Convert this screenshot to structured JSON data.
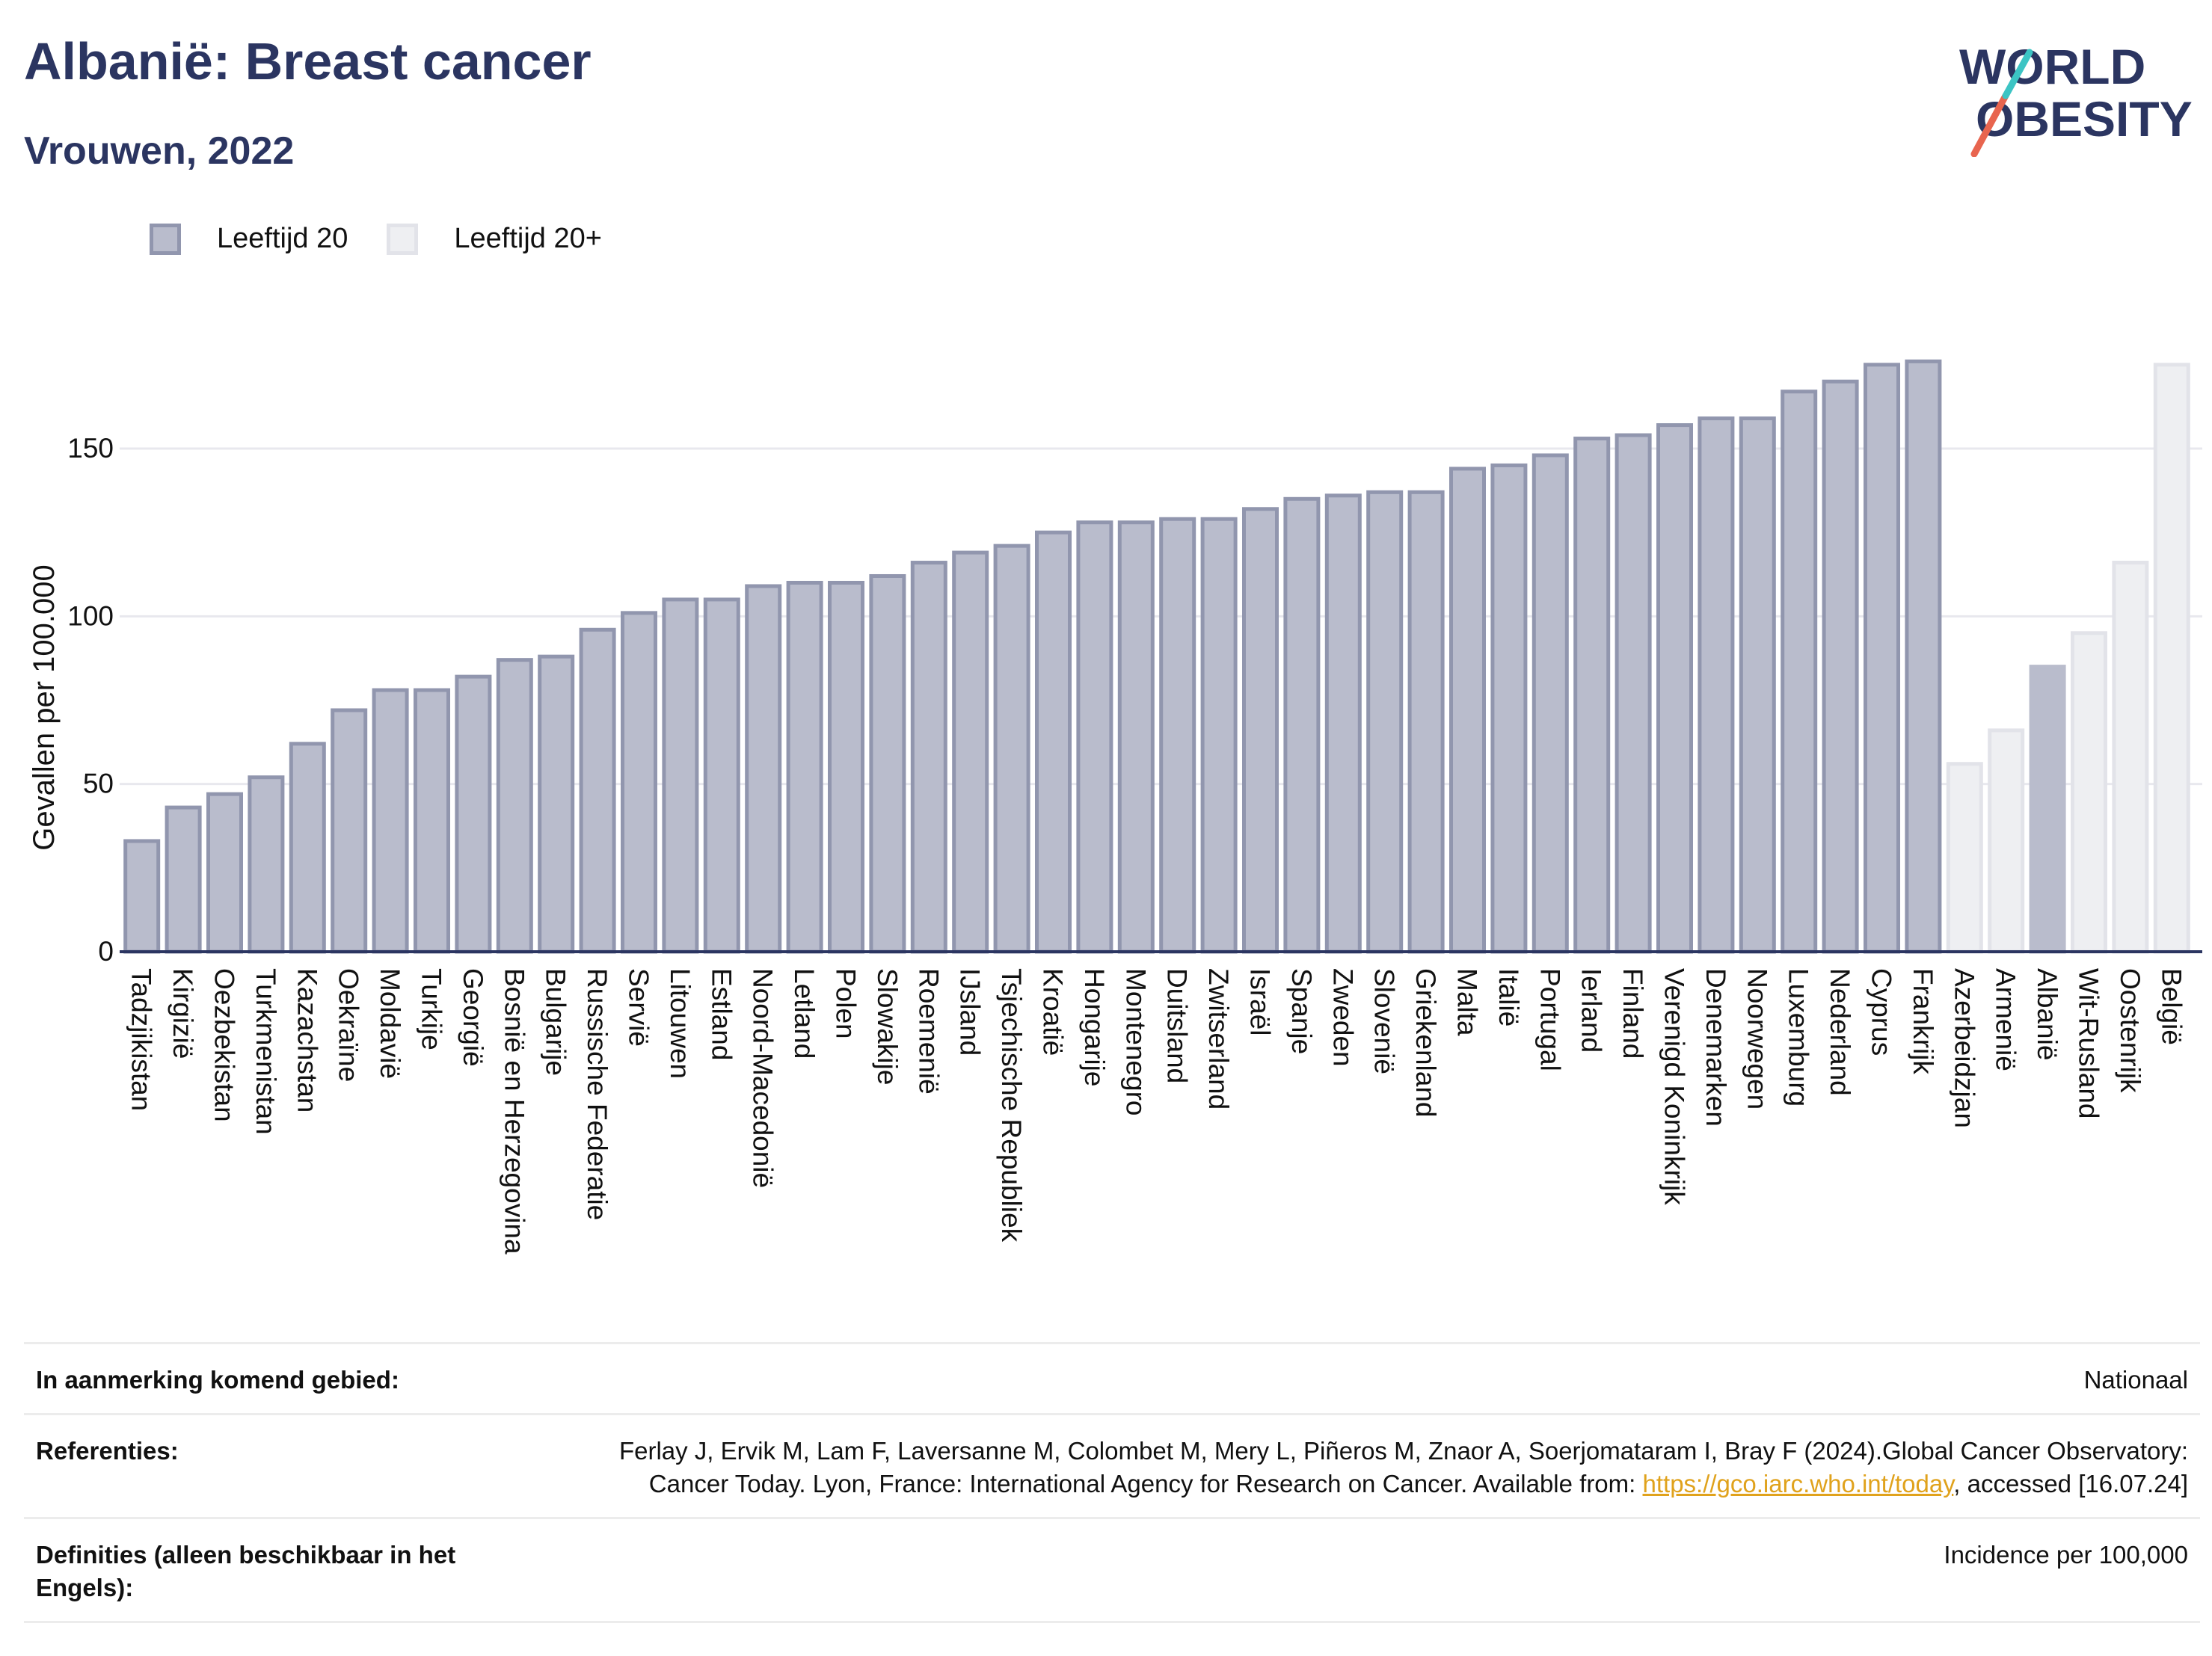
{
  "header": {
    "title": "Albanië: Breast cancer",
    "subtitle": "Vrouwen, 2022"
  },
  "logo": {
    "line1": "WORLD",
    "line2": "OBESITY"
  },
  "legend": [
    {
      "label": "Leeftijd 20",
      "color": "#b9bccc"
    },
    {
      "label": "Leeftijd 20+",
      "color": "#eeeff2"
    }
  ],
  "chart_data": {
    "type": "bar",
    "title": "Albanië: Breast cancer",
    "subtitle": "Vrouwen, 2022",
    "ylabel": "Gevallen per 100.000",
    "xlabel": "",
    "ylim": [
      0,
      185
    ],
    "yticks": [
      0,
      50,
      100,
      150
    ],
    "grid": true,
    "legend_position": "top-left",
    "categories": [
      "Tadzjikistan",
      "Kirgizië",
      "Oezbekistan",
      "Turkmenistan",
      "Kazachstan",
      "Oekraïne",
      "Moldavië",
      "Turkije",
      "Georgië",
      "Bosnië en Herzegovina",
      "Bulgarije",
      "Russische Federatie",
      "Servië",
      "Litouwen",
      "Estland",
      "Noord-Macedonië",
      "Letland",
      "Polen",
      "Slowakije",
      "Roemenië",
      "IJsland",
      "Tsjechische Republiek",
      "Kroatië",
      "Hongarije",
      "Montenegro",
      "Duitsland",
      "Zwitserland",
      "Israël",
      "Spanje",
      "Zweden",
      "Slovenië",
      "Griekenland",
      "Malta",
      "Italië",
      "Portugal",
      "Ierland",
      "Finland",
      "Verenigd Koninkrijk",
      "Denemarken",
      "Noorwegen",
      "Luxemburg",
      "Nederland",
      "Cyprus",
      "Frankrijk",
      "Azerbeidzjan",
      "Armenië",
      "Albanië",
      "Wit-Rusland",
      "Oostenrijk",
      "België"
    ],
    "values": [
      33,
      43,
      47,
      52,
      62,
      72,
      78,
      78,
      82,
      87,
      88,
      96,
      101,
      105,
      105,
      109,
      110,
      110,
      112,
      116,
      119,
      121,
      125,
      128,
      128,
      129,
      129,
      132,
      135,
      136,
      137,
      137,
      144,
      145,
      148,
      153,
      154,
      157,
      159,
      159,
      167,
      170,
      175,
      176,
      56,
      66,
      85,
      95,
      116,
      175
    ],
    "series_group": [
      "20",
      "20",
      "20",
      "20",
      "20",
      "20",
      "20",
      "20",
      "20",
      "20",
      "20",
      "20",
      "20",
      "20",
      "20",
      "20",
      "20",
      "20",
      "20",
      "20",
      "20",
      "20",
      "20",
      "20",
      "20",
      "20",
      "20",
      "20",
      "20",
      "20",
      "20",
      "20",
      "20",
      "20",
      "20",
      "20",
      "20",
      "20",
      "20",
      "20",
      "20",
      "20",
      "20",
      "20",
      "20+",
      "20+",
      "highlight",
      "20+",
      "20+",
      "20+"
    ],
    "colors": {
      "age20_fill": "#b9bccc",
      "age20_stroke": "#9196ae",
      "age20plus_fill": "#eeeff2",
      "age20plus_stroke": "#e2e3e9",
      "highlight_fill": "#b9bccc",
      "axis": "#2b3561",
      "grid": "#e8e8ee"
    }
  },
  "footer": {
    "area_label": "In aanmerking komend gebied:",
    "area_value": "Nationaal",
    "refs_label": "Referenties:",
    "refs_text": "Ferlay J, Ervik M, Lam F, Laversanne M, Colombet M, Mery L, Piñeros M, Znaor A, Soerjomataram I, Bray F (2024).Global Cancer Observatory: Cancer Today. Lyon, France: International Agency for Research on Cancer. Available from:",
    "refs_link": "https://gco.iarc.who.int/today",
    "refs_tail": ", accessed [16.07.24]",
    "def_label": "Definities (alleen beschikbaar in het Engels):",
    "def_value": "Incidence per 100,000"
  }
}
